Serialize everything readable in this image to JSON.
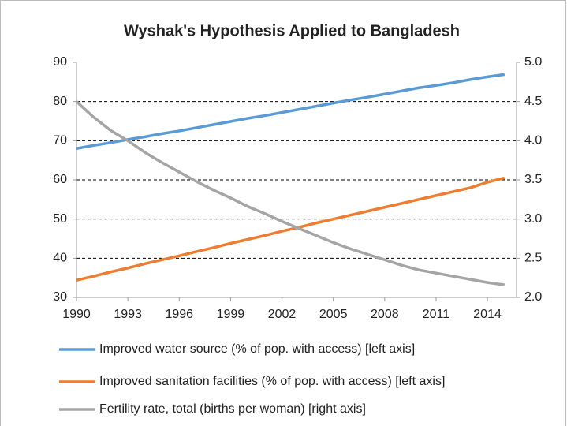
{
  "chart_data": {
    "type": "line",
    "title": "Wyshak's Hypothesis Applied to Bangladesh",
    "x": [
      1990,
      1991,
      1992,
      1993,
      1994,
      1995,
      1996,
      1997,
      1998,
      1999,
      2000,
      2001,
      2002,
      2003,
      2004,
      2005,
      2006,
      2007,
      2008,
      2009,
      2010,
      2011,
      2012,
      2013,
      2014,
      2015
    ],
    "xlim": [
      1990,
      2015.7
    ],
    "xticks": [
      1990,
      1993,
      1996,
      1999,
      2002,
      2005,
      2008,
      2011,
      2014
    ],
    "ylim": [
      30,
      90
    ],
    "yticks": [
      30,
      40,
      50,
      60,
      70,
      80,
      90
    ],
    "y2lim": [
      2.0,
      5.0
    ],
    "y2ticks": [
      {
        "value": 2.0,
        "label": "2.0"
      },
      {
        "value": 2.5,
        "label": "2.5"
      },
      {
        "value": 3.0,
        "label": "3.0"
      },
      {
        "value": 3.5,
        "label": "3.5"
      },
      {
        "value": 4.0,
        "label": "4.0"
      },
      {
        "value": 4.5,
        "label": "4.5"
      },
      {
        "value": 5.0,
        "label": "5.0"
      }
    ],
    "grid": true,
    "legend": "bottom",
    "series": [
      {
        "name": "Improved water source (% of pop. with access) [left axis]",
        "color": "#5b9bd5",
        "values": [
          68,
          68.8,
          69.5,
          70.3,
          71,
          71.8,
          72.5,
          73.3,
          74.1,
          74.9,
          75.7,
          76.4,
          77.2,
          78,
          78.8,
          79.6,
          80.4,
          81.1,
          81.9,
          82.7,
          83.5,
          84.1,
          84.8,
          85.6,
          86.3,
          86.9
        ]
      },
      {
        "name": "Improved sanitation facilities (% of pop. with access) [left axis]",
        "color": "#ed7d31",
        "values": [
          34.4,
          35.4,
          36.5,
          37.5,
          38.6,
          39.6,
          40.6,
          41.7,
          42.7,
          43.8,
          44.8,
          45.8,
          46.9,
          47.9,
          49,
          50,
          51,
          52,
          53,
          54,
          55,
          56,
          57,
          58,
          59.4,
          60.5
        ]
      },
      {
        "name": "Fertility rate, total (births per woman) [right axis]",
        "color": "#a5a5a5",
        "axis": "y2",
        "values": [
          4.5,
          4.3,
          4.13,
          4.0,
          3.85,
          3.72,
          3.6,
          3.48,
          3.37,
          3.27,
          3.16,
          3.07,
          2.97,
          2.88,
          2.79,
          2.7,
          2.62,
          2.55,
          2.48,
          2.41,
          2.35,
          2.31,
          2.27,
          2.23,
          2.19,
          2.16
        ]
      }
    ]
  }
}
